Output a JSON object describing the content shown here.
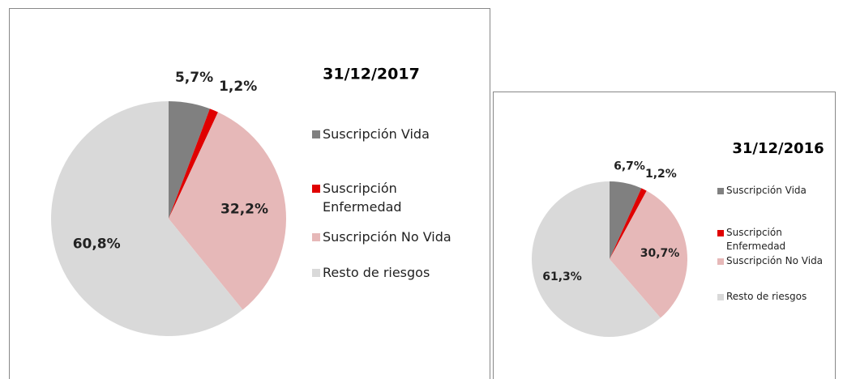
{
  "chart_data": [
    {
      "type": "pie",
      "title": "31/12/2017",
      "categories": [
        "Suscripción Vida",
        "Suscripción Enfermedad",
        "Suscripción No Vida",
        "Resto de riesgos"
      ],
      "values": [
        5.7,
        1.2,
        32.2,
        60.8
      ],
      "value_labels": [
        "5,7%",
        "1,2%",
        "32,2%",
        "60,8%"
      ],
      "colors": [
        "#808080",
        "#e00000",
        "#e6b8b8",
        "#d9d9d9"
      ],
      "legend": "right"
    },
    {
      "type": "pie",
      "title": "31/12/2016",
      "categories": [
        "Suscripción Vida",
        "Suscripción Enfermedad",
        "Suscripción No Vida",
        "Resto de riesgos"
      ],
      "values": [
        6.7,
        1.2,
        30.7,
        61.3
      ],
      "value_labels": [
        "6,7%",
        "1,2%",
        "30,7%",
        "61,3%"
      ],
      "colors": [
        "#808080",
        "#e00000",
        "#e6b8b8",
        "#d9d9d9"
      ],
      "legend": "right"
    }
  ]
}
